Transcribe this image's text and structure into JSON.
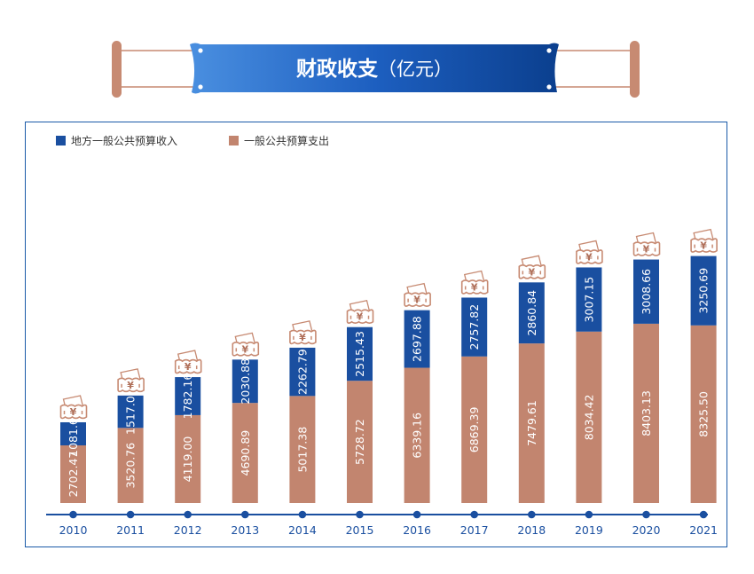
{
  "title": {
    "main": "财政收支",
    "unit": "（亿元）"
  },
  "legend": [
    {
      "label": "地方一般公共预算收入",
      "color": "#1a4fa0"
    },
    {
      "label": "一般公共预算支出",
      "color": "#c2856f"
    }
  ],
  "badge_icon": "yen-ticket-icon",
  "badge_glyph": "¥",
  "chart_data": {
    "type": "bar",
    "stacked": true,
    "title": "财政收支（亿元）",
    "categories": [
      "2010",
      "2011",
      "2012",
      "2013",
      "2014",
      "2015",
      "2016",
      "2017",
      "2018",
      "2019",
      "2020",
      "2021"
    ],
    "series": [
      {
        "name": "一般公共预算支出",
        "color": "#c2856f",
        "values": [
          2702.47,
          3520.76,
          4119.0,
          4690.89,
          5017.38,
          5728.72,
          6339.16,
          6869.39,
          7479.61,
          8034.42,
          8403.13,
          8325.5
        ],
        "labels": [
          "2702.47",
          "3520.76",
          "4119.00",
          "4690.89",
          "5017.38",
          "5728.72",
          "6339.16",
          "6869.39",
          "7479.61",
          "8034.42",
          "8403.13",
          "8325.50"
        ]
      },
      {
        "name": "地方一般公共预算收入",
        "color": "#1a4fa0",
        "values": [
          1081.69,
          1517.07,
          1782.16,
          2030.88,
          2262.79,
          2515.43,
          2697.88,
          2757.82,
          2860.84,
          3007.15,
          3008.66,
          3250.69
        ],
        "labels": [
          "1081.69",
          "1517.07",
          "1782.16",
          "2030.88",
          "2262.79",
          "2515.43",
          "2697.88",
          "2757.82",
          "2860.84",
          "3007.15",
          "3008.66",
          "3250.69"
        ]
      }
    ],
    "xlabel": "",
    "ylabel": "",
    "ylim": [
      0,
      12000
    ],
    "grid": false,
    "legend_position": "top-left"
  }
}
